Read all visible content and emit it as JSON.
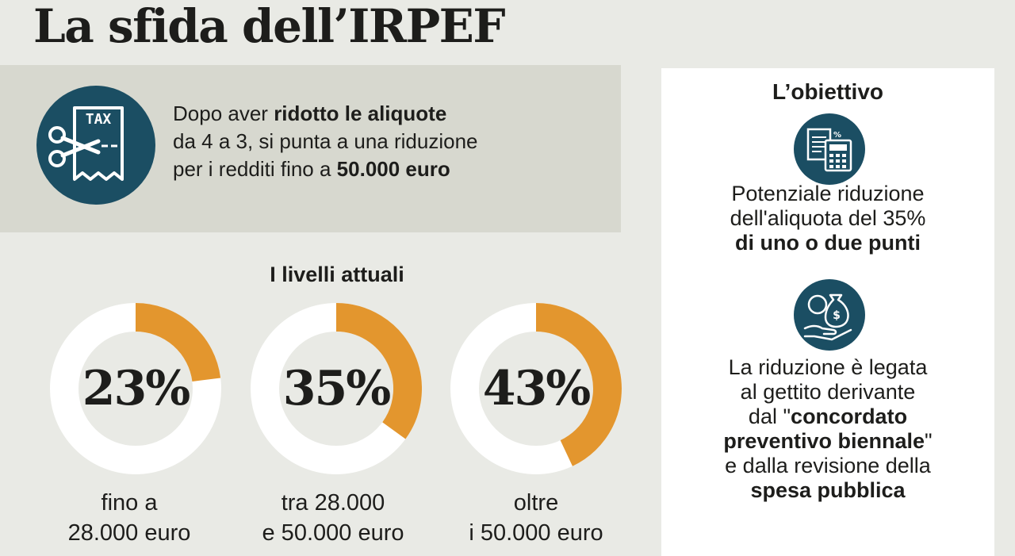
{
  "title": "La sfida dell’IRPEF",
  "intro": {
    "icon": "tax-receipt-scissors-icon",
    "line1_pre": "Dopo aver ",
    "line1_bold": "ridotto le aliquote",
    "line2": "da 4 a 3, si punta a una riduzione",
    "line3_pre": "per i redditi fino a ",
    "line3_bold": "50.000 euro",
    "icon_text": "TAX"
  },
  "levels": {
    "title": "I livelli attuali"
  },
  "chart_data": {
    "type": "pie",
    "title": "I livelli attuali",
    "unit": "%",
    "range": [
      0,
      100
    ],
    "colors": {
      "fill": "#e3962e",
      "remainder": "#ffffff"
    },
    "values": [
      23,
      35,
      43
    ],
    "items": [
      {
        "value_label": "23%",
        "label_line1": "fino a",
        "label_line2": "28.000 euro"
      },
      {
        "value_label": "35%",
        "label_line1": "tra 28.000",
        "label_line2": "e 50.000 euro"
      },
      {
        "value_label": "43%",
        "label_line1": "oltre",
        "label_line2": "i 50.000 euro"
      }
    ]
  },
  "objective": {
    "title": "L’obiettivo",
    "block1": {
      "icon": "calculator-document-icon",
      "line1": "Potenziale riduzione",
      "line2": "dell'aliquota del 35%",
      "line3_bold": "di uno o due punti"
    },
    "block2": {
      "icon": "hand-money-bag-icon",
      "line1": "La riduzione è legata",
      "line2": "al gettito derivante",
      "line3_pre": "dal \"",
      "line3_bold": "concordato",
      "line4_bold": "preventivo biennale",
      "line4_post": "\"",
      "line5": "e dalla revisione della",
      "line6_bold": "spesa pubblica"
    }
  },
  "colors": {
    "accent": "#e3962e",
    "icon_bg": "#1b4e63",
    "background": "#e9eae5",
    "intro_bg": "#d7d8cf",
    "panel_bg": "#ffffff"
  }
}
